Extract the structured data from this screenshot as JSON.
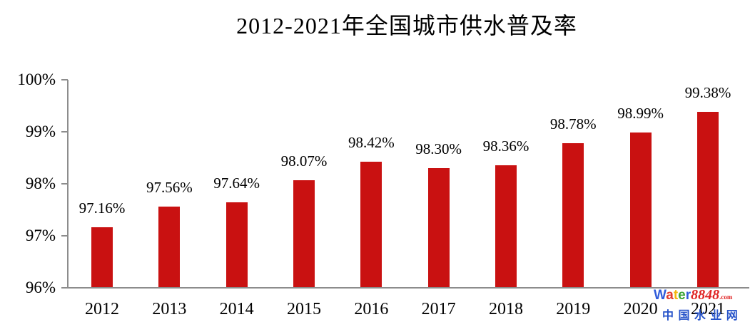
{
  "title": "2012-2021年全国城市供水普及率",
  "chart_data": {
    "type": "bar",
    "title": "2012-2021年全国城市供水普及率",
    "categories": [
      "2012",
      "2013",
      "2014",
      "2015",
      "2016",
      "2017",
      "2018",
      "2019",
      "2020",
      "2021"
    ],
    "values": [
      97.16,
      97.56,
      97.64,
      98.07,
      98.42,
      98.3,
      98.36,
      98.78,
      98.99,
      99.38
    ],
    "value_labels": [
      "97.16%",
      "97.56%",
      "97.64%",
      "98.07%",
      "98.42%",
      "98.30%",
      "98.36%",
      "98.78%",
      "98.99%",
      "99.38%"
    ],
    "xlabel": "",
    "ylabel": "",
    "ylim": [
      96,
      100
    ],
    "ytick_labels": [
      "100%",
      "99%",
      "98%",
      "97%",
      "96%"
    ],
    "grid": false,
    "legend": false,
    "bar_color": "#c91111",
    "axis_color": "#8c8c8c",
    "text_color": "#000000"
  },
  "watermark": {
    "brand_letters": [
      {
        "ch": "W",
        "color": "#2f5bda"
      },
      {
        "ch": "a",
        "color": "#e23a2c"
      },
      {
        "ch": "t",
        "color": "#f4b70c"
      },
      {
        "ch": "e",
        "color": "#3aa437"
      },
      {
        "ch": "r",
        "color": "#2f5bda"
      }
    ],
    "brand_number": "8848",
    "brand_tld": ".com",
    "brand_number_color": "#e02222",
    "caption": "中 国 水 业 网",
    "caption_color": "#2653c9"
  }
}
